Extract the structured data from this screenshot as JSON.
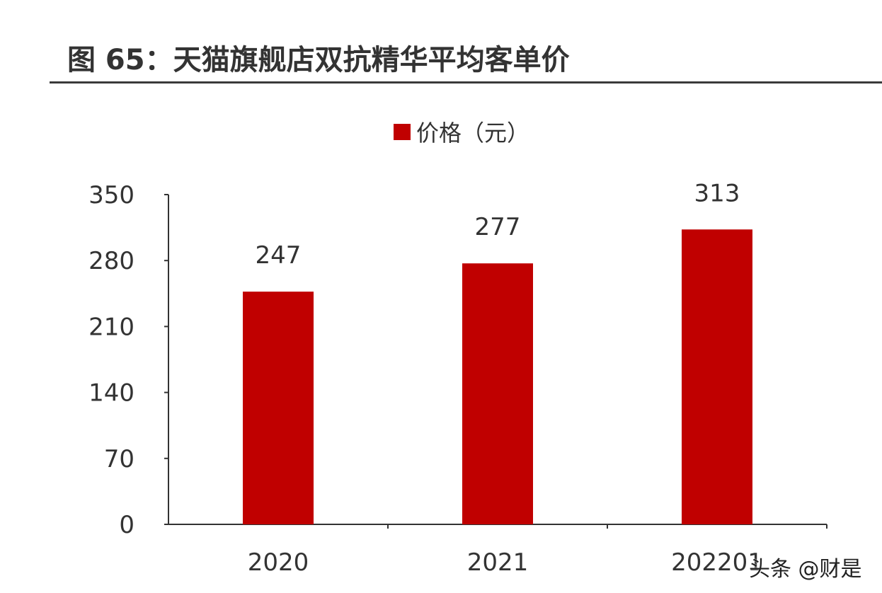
{
  "title": "图 65：天猫旗舰店双抗精华平均客单价",
  "watermark": "头条 @财是",
  "chart_data": {
    "type": "bar",
    "title": "图 65：天猫旗舰店双抗精华平均客单价",
    "categories": [
      "2020",
      "2021",
      "202201"
    ],
    "series": [
      {
        "name": "价格（元）",
        "values": [
          247,
          277,
          313
        ],
        "color": "#c00000"
      }
    ],
    "yticks": [
      0,
      70,
      140,
      210,
      280,
      350
    ],
    "ylim": [
      0,
      350
    ],
    "grid": false,
    "legend": "top",
    "data_labels": true
  }
}
